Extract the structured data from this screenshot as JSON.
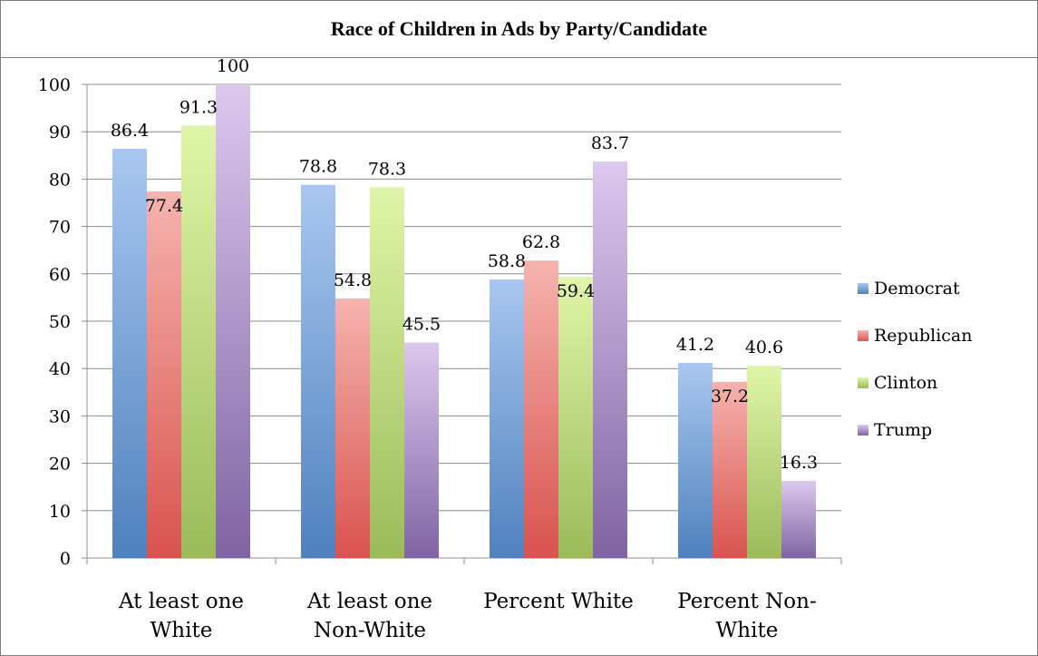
{
  "chart_data": {
    "type": "bar",
    "title": "Race of Children in Ads by Party/Candidate",
    "categories": [
      [
        "At least one",
        "White"
      ],
      [
        "At least one",
        "Non-White"
      ],
      [
        "Percent White",
        ""
      ],
      [
        "Percent Non-",
        "White"
      ]
    ],
    "series": [
      {
        "name": "Democrat",
        "values": [
          86.4,
          78.8,
          58.8,
          41.2
        ],
        "color": "#4f81bd",
        "color_light": "#a9c7f0"
      },
      {
        "name": "Republican",
        "values": [
          77.4,
          54.8,
          62.8,
          37.2
        ],
        "color": "#d9534f",
        "color_light": "#f6b3ae"
      },
      {
        "name": "Clinton",
        "values": [
          91.3,
          78.3,
          59.4,
          40.6
        ],
        "color": "#9bbb59",
        "color_light": "#dff5a8"
      },
      {
        "name": "Trump",
        "values": [
          100,
          45.5,
          83.7,
          16.3
        ],
        "color": "#8064a2",
        "color_light": "#dcc8ef"
      }
    ],
    "data_labels": [
      [
        "86.4",
        "77.4",
        "91.3",
        "100"
      ],
      [
        "78.8",
        "54.8",
        "78.3",
        "45.5"
      ],
      [
        "58.8",
        "62.8",
        "59.4",
        "83.7"
      ],
      [
        "41.2",
        "37.2",
        "40.6",
        "16.3"
      ]
    ],
    "ylim": [
      0,
      100
    ],
    "yticks": [
      0,
      10,
      20,
      30,
      40,
      50,
      60,
      70,
      80,
      90,
      100
    ],
    "grid": true,
    "legend": "right"
  }
}
